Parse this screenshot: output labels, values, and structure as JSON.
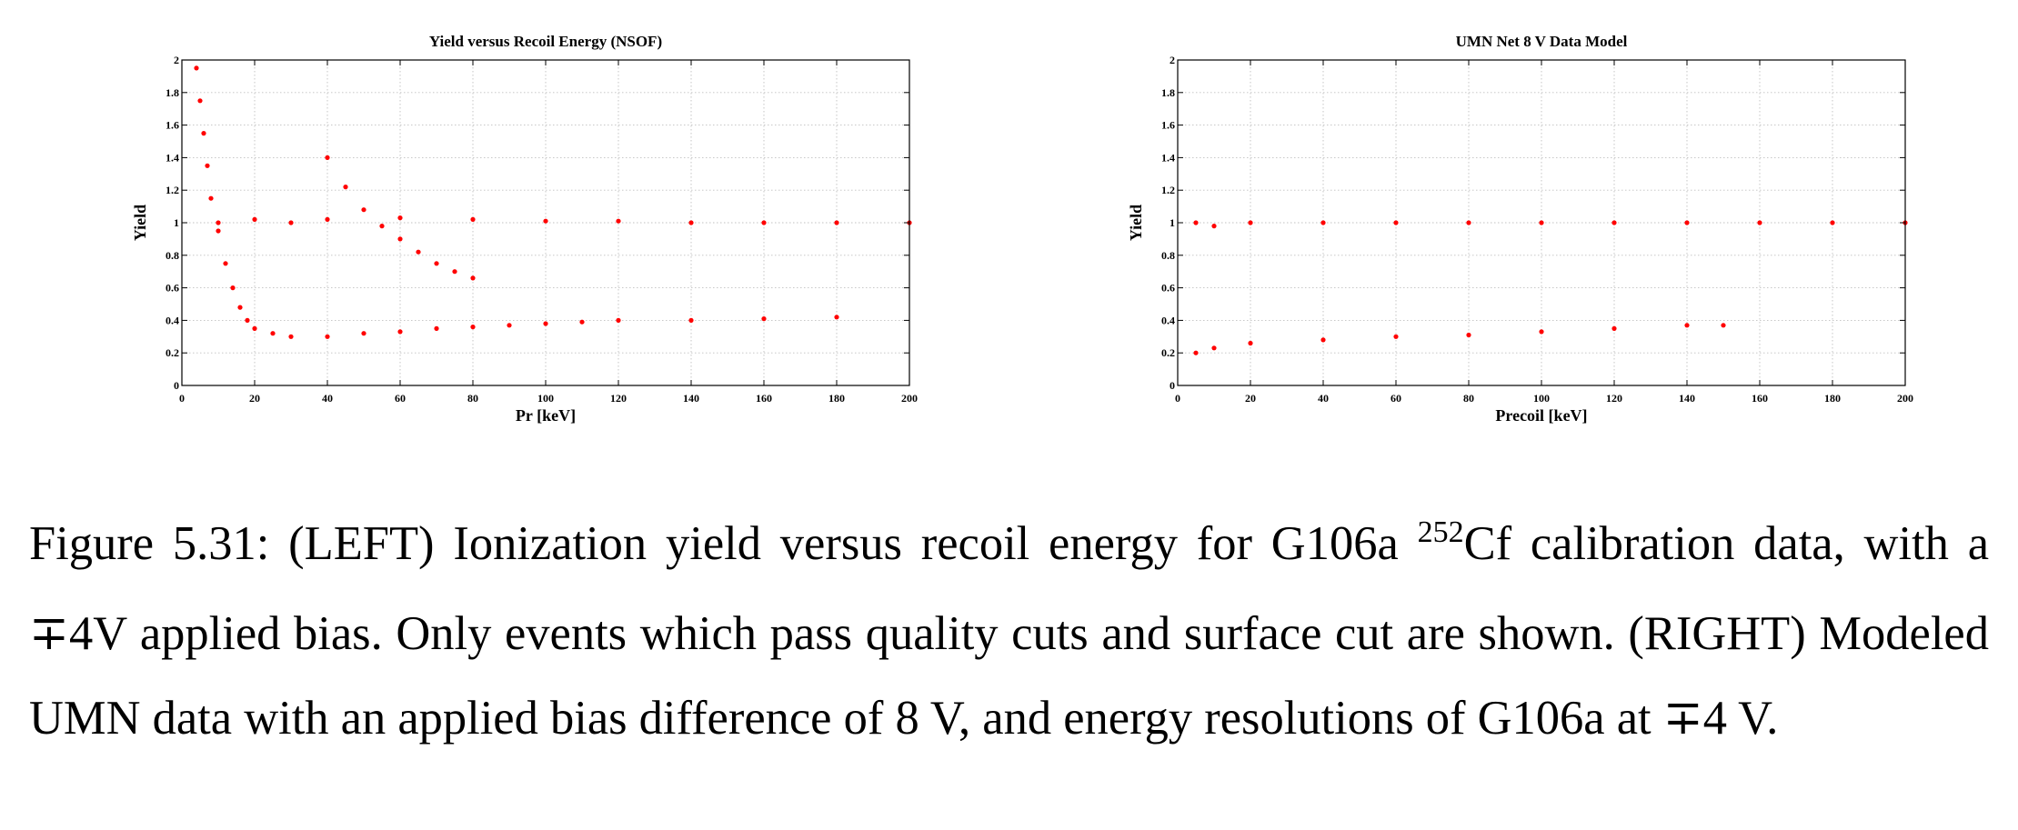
{
  "chart_data": [
    {
      "type": "scatter",
      "title": "Yield versus Recoil Energy (NSOF)",
      "xlabel": "Pr [keV]",
      "ylabel": "Yield",
      "xlim": [
        0,
        200
      ],
      "ylim": [
        0,
        2
      ],
      "xticks": [
        "0",
        "20",
        "40",
        "60",
        "80",
        "100",
        "120",
        "140",
        "160",
        "180",
        "200"
      ],
      "yticks": [
        "0",
        "0.2",
        "0.4",
        "0.6",
        "0.8",
        "1",
        "1.2",
        "1.4",
        "1.6",
        "1.8",
        "2"
      ],
      "grid": true,
      "marker_color": "#ff0000",
      "series": [
        {
          "points": [
            [
              4,
              1.95
            ],
            [
              5,
              1.75
            ],
            [
              6,
              1.55
            ],
            [
              7,
              1.35
            ],
            [
              8,
              1.15
            ],
            [
              10,
              0.95
            ],
            [
              12,
              0.75
            ],
            [
              14,
              0.6
            ],
            [
              16,
              0.48
            ],
            [
              18,
              0.4
            ],
            [
              20,
              0.35
            ],
            [
              25,
              0.32
            ],
            [
              30,
              0.3
            ],
            [
              40,
              0.3
            ],
            [
              50,
              0.32
            ],
            [
              60,
              0.33
            ],
            [
              70,
              0.35
            ],
            [
              80,
              0.36
            ],
            [
              90,
              0.37
            ],
            [
              100,
              0.38
            ],
            [
              110,
              0.39
            ],
            [
              120,
              0.4
            ],
            [
              140,
              0.4
            ],
            [
              160,
              0.41
            ],
            [
              180,
              0.42
            ]
          ]
        },
        {
          "points": [
            [
              40,
              1.4
            ],
            [
              45,
              1.22
            ],
            [
              50,
              1.08
            ],
            [
              55,
              0.98
            ],
            [
              60,
              0.9
            ],
            [
              65,
              0.82
            ],
            [
              70,
              0.75
            ],
            [
              75,
              0.7
            ],
            [
              80,
              0.66
            ]
          ]
        },
        {
          "points": [
            [
              10,
              1.0
            ],
            [
              20,
              1.02
            ],
            [
              30,
              1.0
            ],
            [
              40,
              1.02
            ],
            [
              60,
              1.03
            ],
            [
              80,
              1.02
            ],
            [
              100,
              1.01
            ],
            [
              120,
              1.01
            ],
            [
              140,
              1.0
            ],
            [
              160,
              1.0
            ],
            [
              180,
              1.0
            ],
            [
              200,
              1.0
            ]
          ]
        }
      ]
    },
    {
      "type": "scatter",
      "title": "UMN Net 8 V Data Model",
      "xlabel": "Precoil [keV]",
      "ylabel": "Yield",
      "xlim": [
        0,
        200
      ],
      "ylim": [
        0,
        2
      ],
      "xticks": [
        "0",
        "20",
        "40",
        "60",
        "80",
        "100",
        "120",
        "140",
        "160",
        "180",
        "200"
      ],
      "yticks": [
        "0",
        "0.2",
        "0.4",
        "0.6",
        "0.8",
        "1",
        "1.2",
        "1.4",
        "1.6",
        "1.8",
        "2"
      ],
      "grid": true,
      "marker_color": "#ff0000",
      "series": [
        {
          "points": [
            [
              5,
              1.0
            ],
            [
              10,
              0.98
            ],
            [
              20,
              1.0
            ],
            [
              40,
              1.0
            ],
            [
              60,
              1.0
            ],
            [
              80,
              1.0
            ],
            [
              100,
              1.0
            ],
            [
              120,
              1.0
            ],
            [
              140,
              1.0
            ],
            [
              160,
              1.0
            ],
            [
              180,
              1.0
            ],
            [
              200,
              1.0
            ]
          ]
        },
        {
          "points": [
            [
              5,
              0.2
            ],
            [
              10,
              0.23
            ],
            [
              20,
              0.26
            ],
            [
              40,
              0.28
            ],
            [
              60,
              0.3
            ],
            [
              80,
              0.31
            ],
            [
              100,
              0.33
            ],
            [
              120,
              0.35
            ],
            [
              140,
              0.37
            ],
            [
              150,
              0.37
            ]
          ]
        }
      ]
    }
  ],
  "caption": {
    "part1": "Figure 5.31: (LEFT) Ionization yield versus recoil energy for G106a ",
    "sup": "252",
    "part2": "Cf calibration data, with a ∓4V applied bias. Only events which pass quality cuts and surface cut are shown. (RIGHT) Modeled UMN data with an applied bias difference of 8 V, and energy resolutions of G106a at ∓4 V."
  }
}
